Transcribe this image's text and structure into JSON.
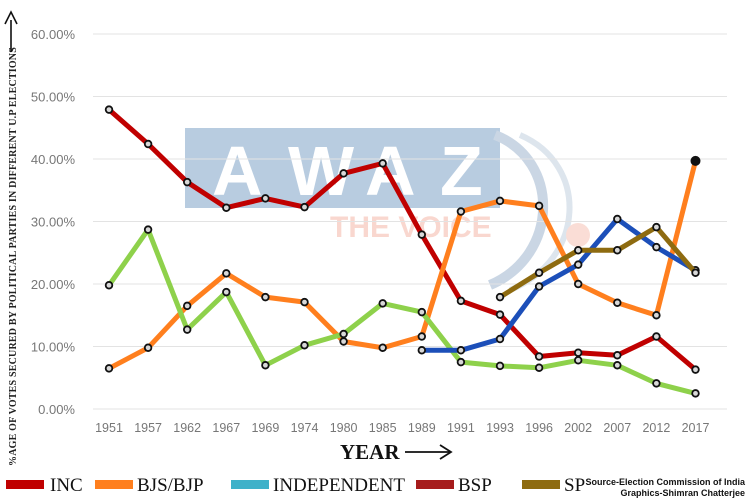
{
  "chart_data": {
    "type": "line",
    "xlabel": "YEAR",
    "ylabel": "%AGE OF VOTES SECURED BY POLITICAL PARTIES IN DIFFERENT U.P ELECTIONS",
    "categories": [
      "1951",
      "1957",
      "1962",
      "1967",
      "1969",
      "1974",
      "1980",
      "1985",
      "1989",
      "1991",
      "1993",
      "1996",
      "2002",
      "2007",
      "2012",
      "2017"
    ],
    "ylim": [
      0,
      60
    ],
    "yticks": [
      "0.00%",
      "10.00%",
      "20.00%",
      "30.00%",
      "40.00%",
      "50.00%",
      "60.00%"
    ],
    "grid": "horizontal",
    "legend_position": "bottom-left",
    "series": [
      {
        "name": "INC",
        "color": "#c00000",
        "values": [
          47.9,
          42.4,
          36.3,
          32.2,
          33.7,
          32.3,
          37.7,
          39.3,
          27.9,
          17.3,
          15.1,
          8.4,
          9.0,
          8.6,
          11.6,
          6.3
        ]
      },
      {
        "name": "BJS/BJP",
        "color": "#ff7f1e",
        "values": [
          6.5,
          9.8,
          16.5,
          21.7,
          17.9,
          17.1,
          10.8,
          9.8,
          11.6,
          31.6,
          33.3,
          32.5,
          20.0,
          17.0,
          15.0,
          39.7
        ]
      },
      {
        "name": "INDEPENDENT",
        "color": "#8ed14b",
        "values": [
          19.8,
          28.7,
          12.7,
          18.7,
          7.0,
          10.2,
          12.0,
          16.9,
          15.5,
          7.5,
          6.9,
          6.6,
          7.8,
          7.0,
          4.1,
          2.5
        ]
      },
      {
        "name": "BSP",
        "color": "#1c4fb9",
        "values": [
          null,
          null,
          null,
          null,
          null,
          null,
          null,
          null,
          9.4,
          9.4,
          11.2,
          19.6,
          23.1,
          30.4,
          25.9,
          22.2
        ]
      },
      {
        "name": "SP",
        "color": "#8e6b10",
        "values": [
          null,
          null,
          null,
          null,
          null,
          null,
          null,
          null,
          null,
          null,
          17.9,
          21.8,
          25.4,
          25.4,
          29.1,
          21.8
        ]
      }
    ],
    "legend": [
      {
        "label": "INC",
        "color": "#c00000"
      },
      {
        "label": "BJS/BJP",
        "color": "#ff7f1e"
      },
      {
        "label": "INDEPENDENT",
        "color": "#3fb1c9"
      },
      {
        "label": "BSP",
        "color": "#a61c1c"
      },
      {
        "label": "SP",
        "color": "#8e6b10"
      }
    ]
  },
  "watermark": {
    "letters": [
      "A",
      "W",
      "A",
      "Z"
    ],
    "subtitle": "THE VOICE"
  },
  "source": {
    "line1": "Source-Election Commission of India",
    "line2": "Graphics-Shimran Chatterjee"
  }
}
